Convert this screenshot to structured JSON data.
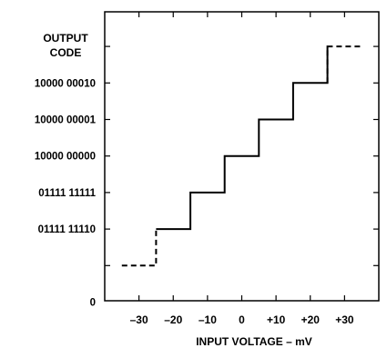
{
  "chart_data": {
    "type": "line",
    "title": "",
    "ylabel": "OUTPUT CODE",
    "ylabel_lines": [
      "OUTPUT",
      "CODE"
    ],
    "xlabel": "INPUT VOLTAGE – mV",
    "xlim": [
      -40,
      40
    ],
    "x_ticks": [
      {
        "value": -30,
        "label": "–30"
      },
      {
        "value": -20,
        "label": "–20"
      },
      {
        "value": -10,
        "label": "–10"
      },
      {
        "value": 0,
        "label": "0"
      },
      {
        "value": 10,
        "label": "+10"
      },
      {
        "value": 20,
        "label": "+20"
      },
      {
        "value": 30,
        "label": "+30"
      }
    ],
    "y_levels": [
      {
        "level": 0,
        "label": "0"
      },
      {
        "level": 1,
        "label": ""
      },
      {
        "level": 2,
        "label": "01111 11110"
      },
      {
        "level": 3,
        "label": "01111 11111"
      },
      {
        "level": 4,
        "label": "10000 00000"
      },
      {
        "level": 5,
        "label": "10000 00001"
      },
      {
        "level": 6,
        "label": "10000 00010"
      },
      {
        "level": 7,
        "label": ""
      }
    ],
    "grid": false,
    "series": [
      {
        "style": "dashed",
        "x": [
          -35,
          -25,
          -25
        ],
        "y": [
          1,
          1,
          2
        ]
      },
      {
        "style": "solid",
        "x": [
          -25,
          -15,
          -15,
          -5,
          -5,
          5,
          5,
          15,
          15,
          25,
          25
        ],
        "y": [
          2,
          2,
          3,
          3,
          4,
          4,
          5,
          5,
          6,
          6,
          7
        ]
      },
      {
        "style": "dashed",
        "x": [
          25,
          25,
          35
        ],
        "y": [
          6,
          7,
          7
        ]
      }
    ]
  }
}
